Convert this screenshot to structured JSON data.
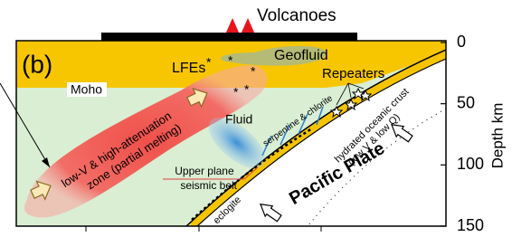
{
  "title": "Volcanoes",
  "panel_label": "(b)",
  "labels": {
    "lfes": "LFEs",
    "geofluid": "Geofluid",
    "repeaters": "Repeaters",
    "moho": "Moho",
    "low_v_zone": [
      "low-V & high-attenuation",
      "zone (partial melting)"
    ],
    "fluid": "Fluid",
    "serpentine": "serpentine & chlorite",
    "oceanic_crust": [
      "hydrated oceanic crust",
      "(low V & low Q)"
    ],
    "seismic_belt": [
      "Upper plane",
      "seismic belt"
    ],
    "pacific_plate": "Pacific Plate",
    "eclogite": "eclogite"
  },
  "axis": {
    "label": "Depth  km",
    "ticks": [
      0,
      50,
      100,
      150
    ]
  }
}
